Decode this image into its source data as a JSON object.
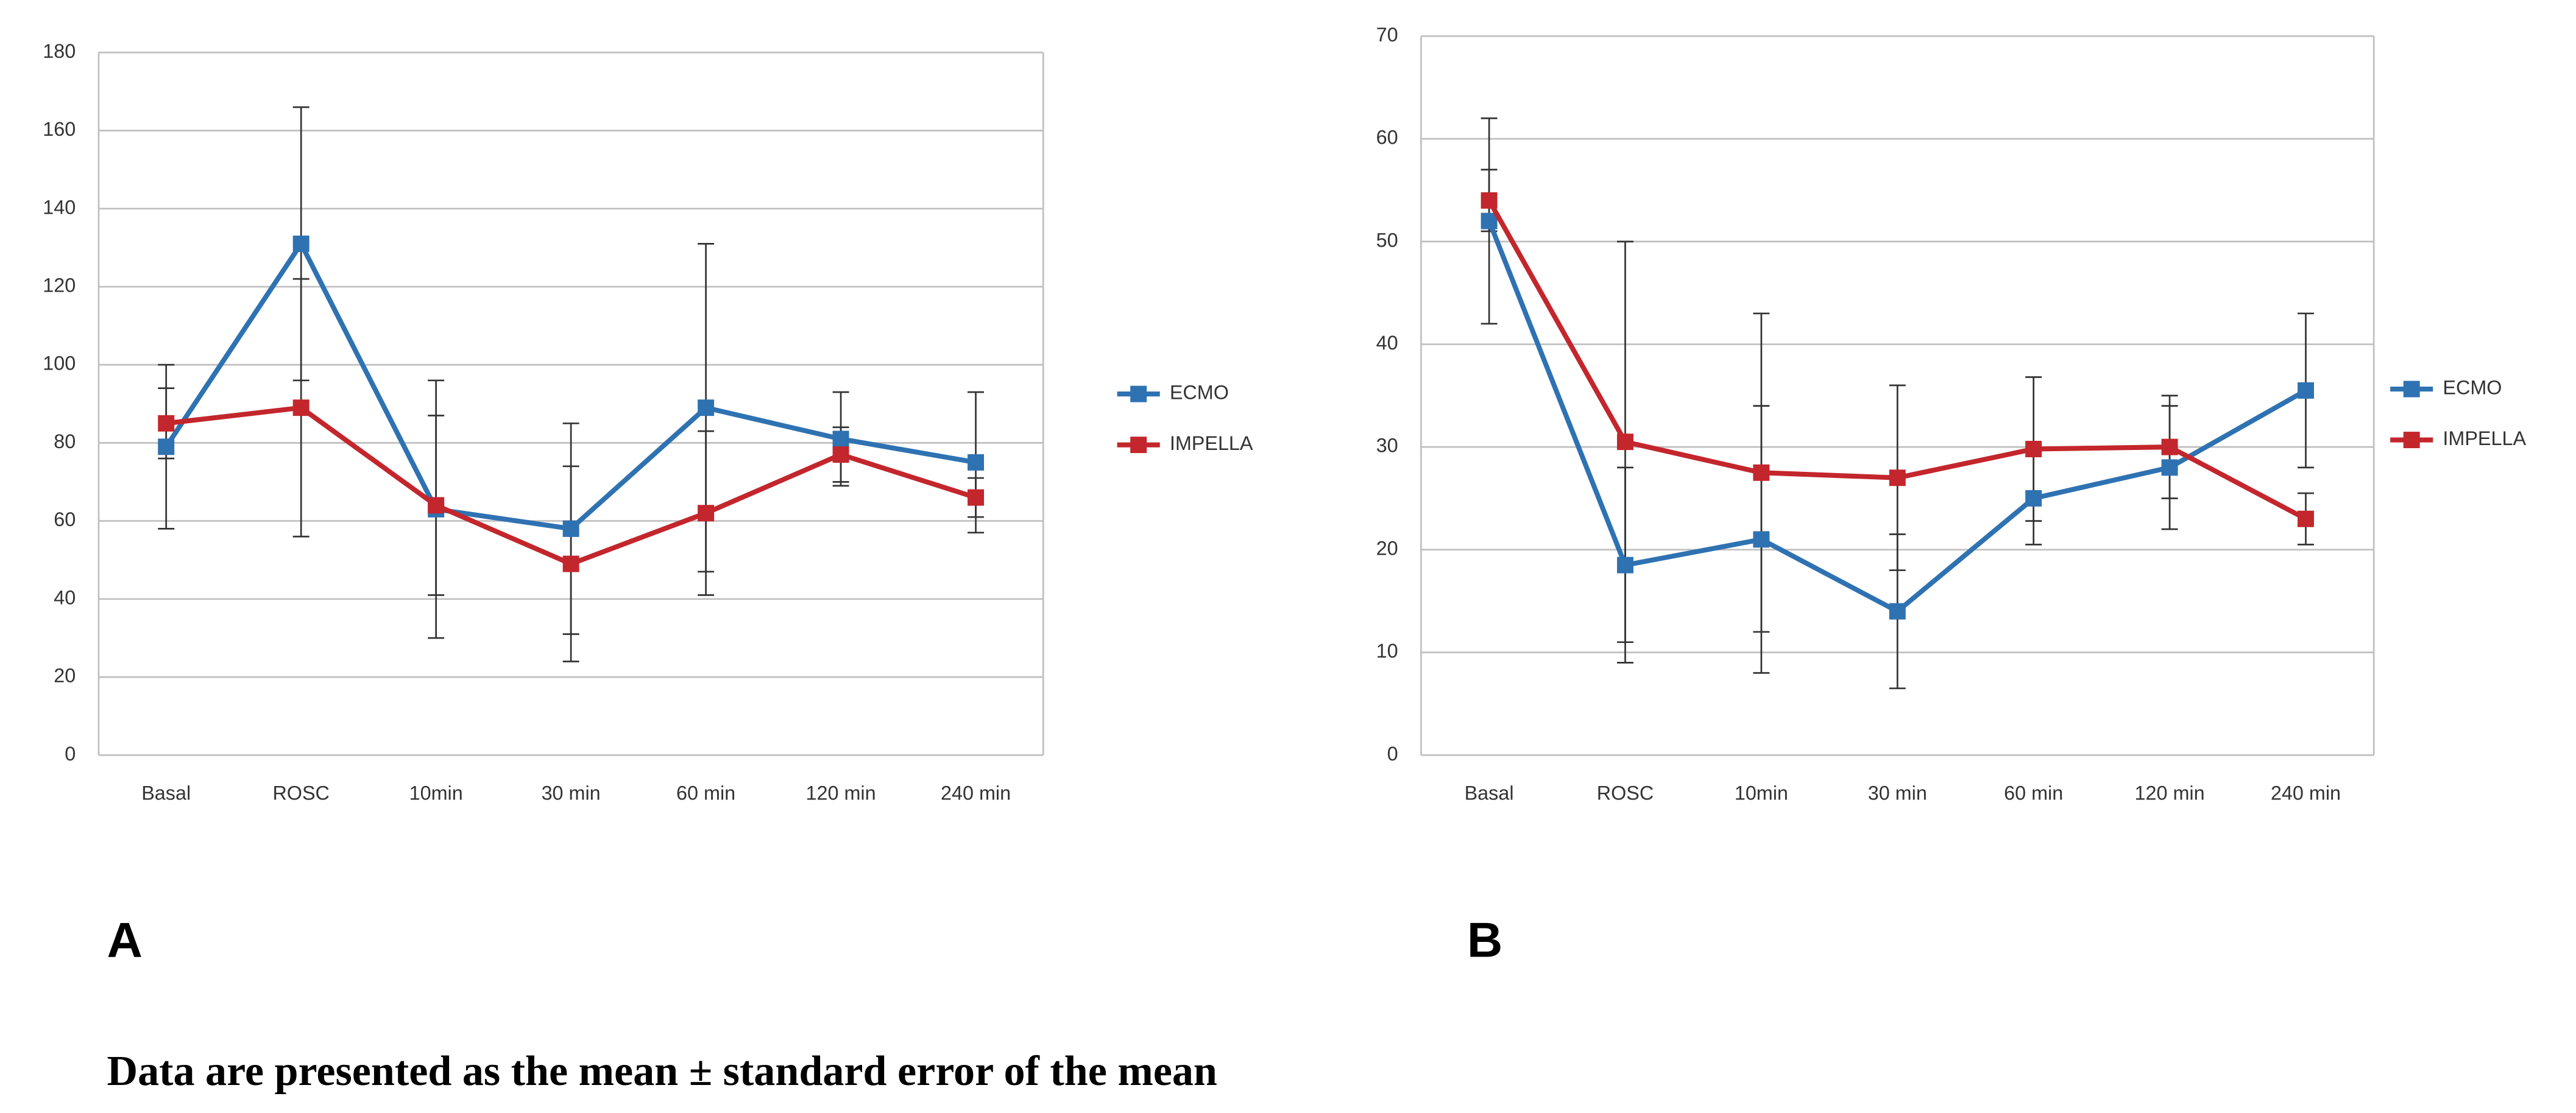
{
  "chart_data": [
    {
      "type": "line",
      "panel_label": "A",
      "categories": [
        "Basal",
        "ROSC",
        "10min",
        "30 min",
        "60 min",
        "120 min",
        "240 min"
      ],
      "series": [
        {
          "name": "ECMO",
          "color": "#2f72b2",
          "values": [
            79,
            131,
            63,
            58,
            89,
            81,
            75
          ],
          "errors": [
            21,
            35,
            33,
            27,
            42,
            12,
            18
          ]
        },
        {
          "name": "IMPELLA",
          "color": "#c3262c",
          "values": [
            85,
            89,
            64,
            49,
            62,
            77,
            66
          ],
          "errors": [
            9,
            33,
            23,
            25,
            21,
            7,
            5
          ]
        }
      ],
      "ylim": [
        0,
        180
      ],
      "yticks": [
        0,
        20,
        40,
        60,
        80,
        100,
        120,
        140,
        160,
        180
      ],
      "grid": true,
      "legend": "right"
    },
    {
      "type": "line",
      "panel_label": "B",
      "categories": [
        "Basal",
        "ROSC",
        "10min",
        "30 min",
        "60 min",
        "120 min",
        "240 min"
      ],
      "series": [
        {
          "name": "ECMO",
          "color": "#2f72b2",
          "values": [
            52,
            18.5,
            21,
            14,
            25,
            28,
            35.5
          ],
          "errors": [
            10,
            9.5,
            13,
            7.5,
            4.5,
            6,
            7.5
          ]
        },
        {
          "name": "IMPELLA",
          "color": "#c3262c",
          "values": [
            54,
            30.5,
            27.5,
            27,
            29.8,
            30,
            23
          ],
          "errors": [
            3,
            19.5,
            15.5,
            9,
            7,
            5,
            2.5
          ]
        }
      ],
      "ylim": [
        0,
        70
      ],
      "yticks": [
        0,
        10,
        20,
        30,
        40,
        50,
        60,
        70
      ],
      "grid": true,
      "legend": "right"
    }
  ],
  "caption": "Data are presented as the mean ± standard error of the mean"
}
